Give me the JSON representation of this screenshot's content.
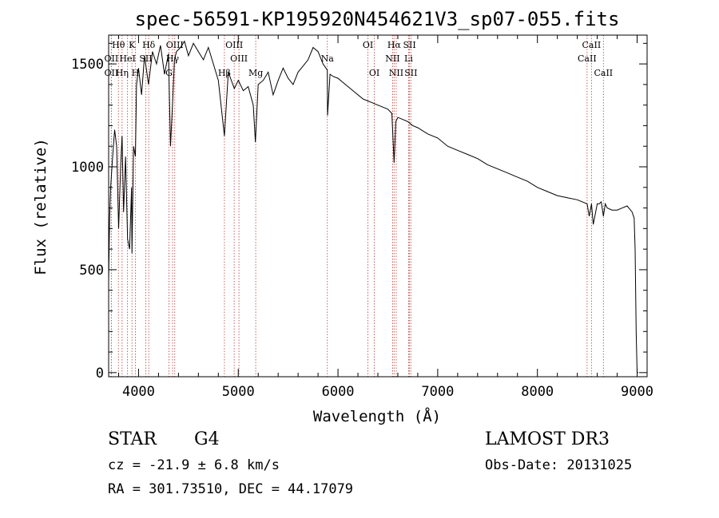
{
  "chart_data": {
    "type": "line",
    "title": "spec-56591-KP195920N454621V3_sp07-055.fits",
    "xlabel": "Wavelength (Å)",
    "ylabel": "Flux (relative)",
    "xlim": [
      3700,
      9100
    ],
    "ylim": [
      -20,
      1640
    ],
    "xticks": [
      4000,
      5000,
      6000,
      7000,
      8000,
      9000
    ],
    "yticks": [
      0,
      500,
      1000,
      1500
    ],
    "grid": false,
    "series": [
      {
        "name": "flux",
        "x": [
          3700,
          3710,
          3720,
          3740,
          3760,
          3780,
          3800,
          3820,
          3835,
          3850,
          3870,
          3890,
          3910,
          3930,
          3934,
          3950,
          3968,
          3980,
          4000,
          4030,
          4060,
          4100,
          4140,
          4180,
          4220,
          4260,
          4300,
          4320,
          4340,
          4360,
          4380,
          4420,
          4460,
          4500,
          4550,
          4600,
          4650,
          4700,
          4750,
          4800,
          4861,
          4900,
          4960,
          5000,
          5050,
          5100,
          5150,
          5172,
          5200,
          5250,
          5300,
          5350,
          5400,
          5450,
          5500,
          5550,
          5600,
          5650,
          5700,
          5750,
          5800,
          5850,
          5893,
          5895,
          5920,
          5950,
          6000,
          6050,
          6100,
          6150,
          6200,
          6250,
          6300,
          6350,
          6400,
          6450,
          6500,
          6540,
          6563,
          6580,
          6600,
          6650,
          6700,
          6750,
          6800,
          6900,
          7000,
          7100,
          7200,
          7300,
          7400,
          7500,
          7600,
          7700,
          7800,
          7900,
          8000,
          8100,
          8200,
          8300,
          8400,
          8498,
          8520,
          8542,
          8560,
          8600,
          8620,
          8640,
          8662,
          8680,
          8700,
          8750,
          8800,
          8850,
          8900,
          8950,
          8970,
          8980,
          8990,
          9000,
          9010
        ],
        "values": [
          450,
          750,
          900,
          1050,
          1180,
          1100,
          700,
          1000,
          1150,
          780,
          1050,
          650,
          600,
          900,
          580,
          1100,
          1050,
          1400,
          1480,
          1350,
          1540,
          1400,
          1560,
          1500,
          1590,
          1450,
          1550,
          1100,
          1300,
          1520,
          1560,
          1580,
          1610,
          1540,
          1600,
          1560,
          1520,
          1580,
          1500,
          1420,
          1150,
          1460,
          1380,
          1420,
          1370,
          1390,
          1300,
          1120,
          1400,
          1420,
          1460,
          1350,
          1420,
          1480,
          1430,
          1400,
          1460,
          1490,
          1520,
          1580,
          1560,
          1500,
          1470,
          1250,
          1450,
          1440,
          1430,
          1410,
          1390,
          1370,
          1350,
          1330,
          1320,
          1310,
          1300,
          1290,
          1280,
          1260,
          1020,
          1220,
          1240,
          1230,
          1220,
          1200,
          1190,
          1160,
          1140,
          1100,
          1080,
          1060,
          1040,
          1010,
          990,
          970,
          950,
          930,
          900,
          880,
          860,
          850,
          840,
          820,
          760,
          820,
          720,
          820,
          820,
          830,
          760,
          820,
          800,
          790,
          790,
          800,
          810,
          780,
          750,
          600,
          200,
          0,
          0
        ]
      }
    ],
    "lines": [
      {
        "name": "Hθ",
        "x": 3798,
        "row": 0
      },
      {
        "name": "K",
        "x": 3934,
        "row": 0
      },
      {
        "name": "Hδ",
        "x": 4102,
        "row": 0
      },
      {
        "name": "OII",
        "x": 3727,
        "row": 1
      },
      {
        "name": "HeI",
        "x": 3889,
        "row": 1
      },
      {
        "name": "SII",
        "x": 4072,
        "row": 1
      },
      {
        "name": "OII",
        "x": 3727,
        "row": 2
      },
      {
        "name": "Hη",
        "x": 3835,
        "row": 2
      },
      {
        "name": "H",
        "x": 3969,
        "row": 2
      },
      {
        "name": "OIII",
        "x": 4363,
        "row": 0
      },
      {
        "name": "Hγ",
        "x": 4341,
        "row": 1
      },
      {
        "name": "G",
        "x": 4305,
        "row": 2
      },
      {
        "name": "OIII",
        "x": 4959,
        "row": 0
      },
      {
        "name": "OIII",
        "x": 5007,
        "row": 1
      },
      {
        "name": "Hβ",
        "x": 4861,
        "row": 2
      },
      {
        "name": "Mg",
        "x": 5175,
        "row": 2
      },
      {
        "name": "Na",
        "x": 5893,
        "row": 1
      },
      {
        "name": "OI",
        "x": 6300,
        "row": 0
      },
      {
        "name": "OI",
        "x": 6364,
        "row": 2
      },
      {
        "name": "Hα",
        "x": 6563,
        "row": 0
      },
      {
        "name": "SII",
        "x": 6717,
        "row": 0
      },
      {
        "name": "NII",
        "x": 6548,
        "row": 1
      },
      {
        "name": "Li",
        "x": 6708,
        "row": 1
      },
      {
        "name": "NII",
        "x": 6584,
        "row": 2
      },
      {
        "name": "SII",
        "x": 6731,
        "row": 2
      },
      {
        "name": "CaII",
        "x": 8542,
        "row": 0
      },
      {
        "name": "CaII",
        "x": 8498,
        "row": 1
      },
      {
        "name": "CaII",
        "x": 8662,
        "row": 2
      }
    ]
  },
  "info": {
    "object_type": "STAR",
    "subclass": "G4",
    "survey": "LAMOST DR3",
    "redshift_line": "cz = -21.9 ± 6.8 km/s",
    "obs_date": "Obs-Date: 20131025",
    "coords": "RA = 301.73510, DEC =  44.17079"
  },
  "colors": {
    "spectrum": "#000000",
    "line_markers": "#c0504d",
    "axes": "#000000"
  }
}
